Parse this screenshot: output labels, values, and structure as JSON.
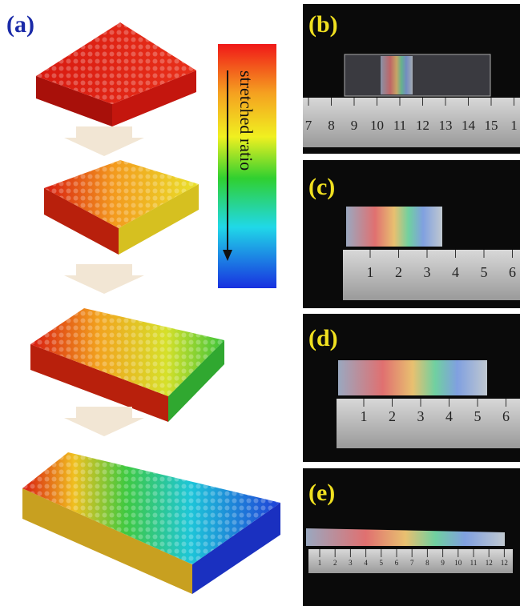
{
  "panel_a": {
    "label": "(a)",
    "colorbar_label": "stretched ratio"
  },
  "panel_b": {
    "label": "(b)",
    "ruler_labels": [
      "7",
      "8",
      "9",
      "10",
      "11",
      "12",
      "13",
      "14",
      "15",
      "1"
    ]
  },
  "panel_c": {
    "label": "(c)",
    "ruler_labels": [
      "1",
      "2",
      "3",
      "4",
      "5",
      "6"
    ]
  },
  "panel_d": {
    "label": "(d)",
    "ruler_labels": [
      "1",
      "2",
      "3",
      "4",
      "5",
      "6"
    ]
  },
  "panel_e": {
    "label": "(e)",
    "ruler_labels": [
      "1",
      "2",
      "3",
      "4",
      "5",
      "6",
      "7",
      "8",
      "9",
      "10",
      "11",
      "12",
      "12"
    ]
  }
}
